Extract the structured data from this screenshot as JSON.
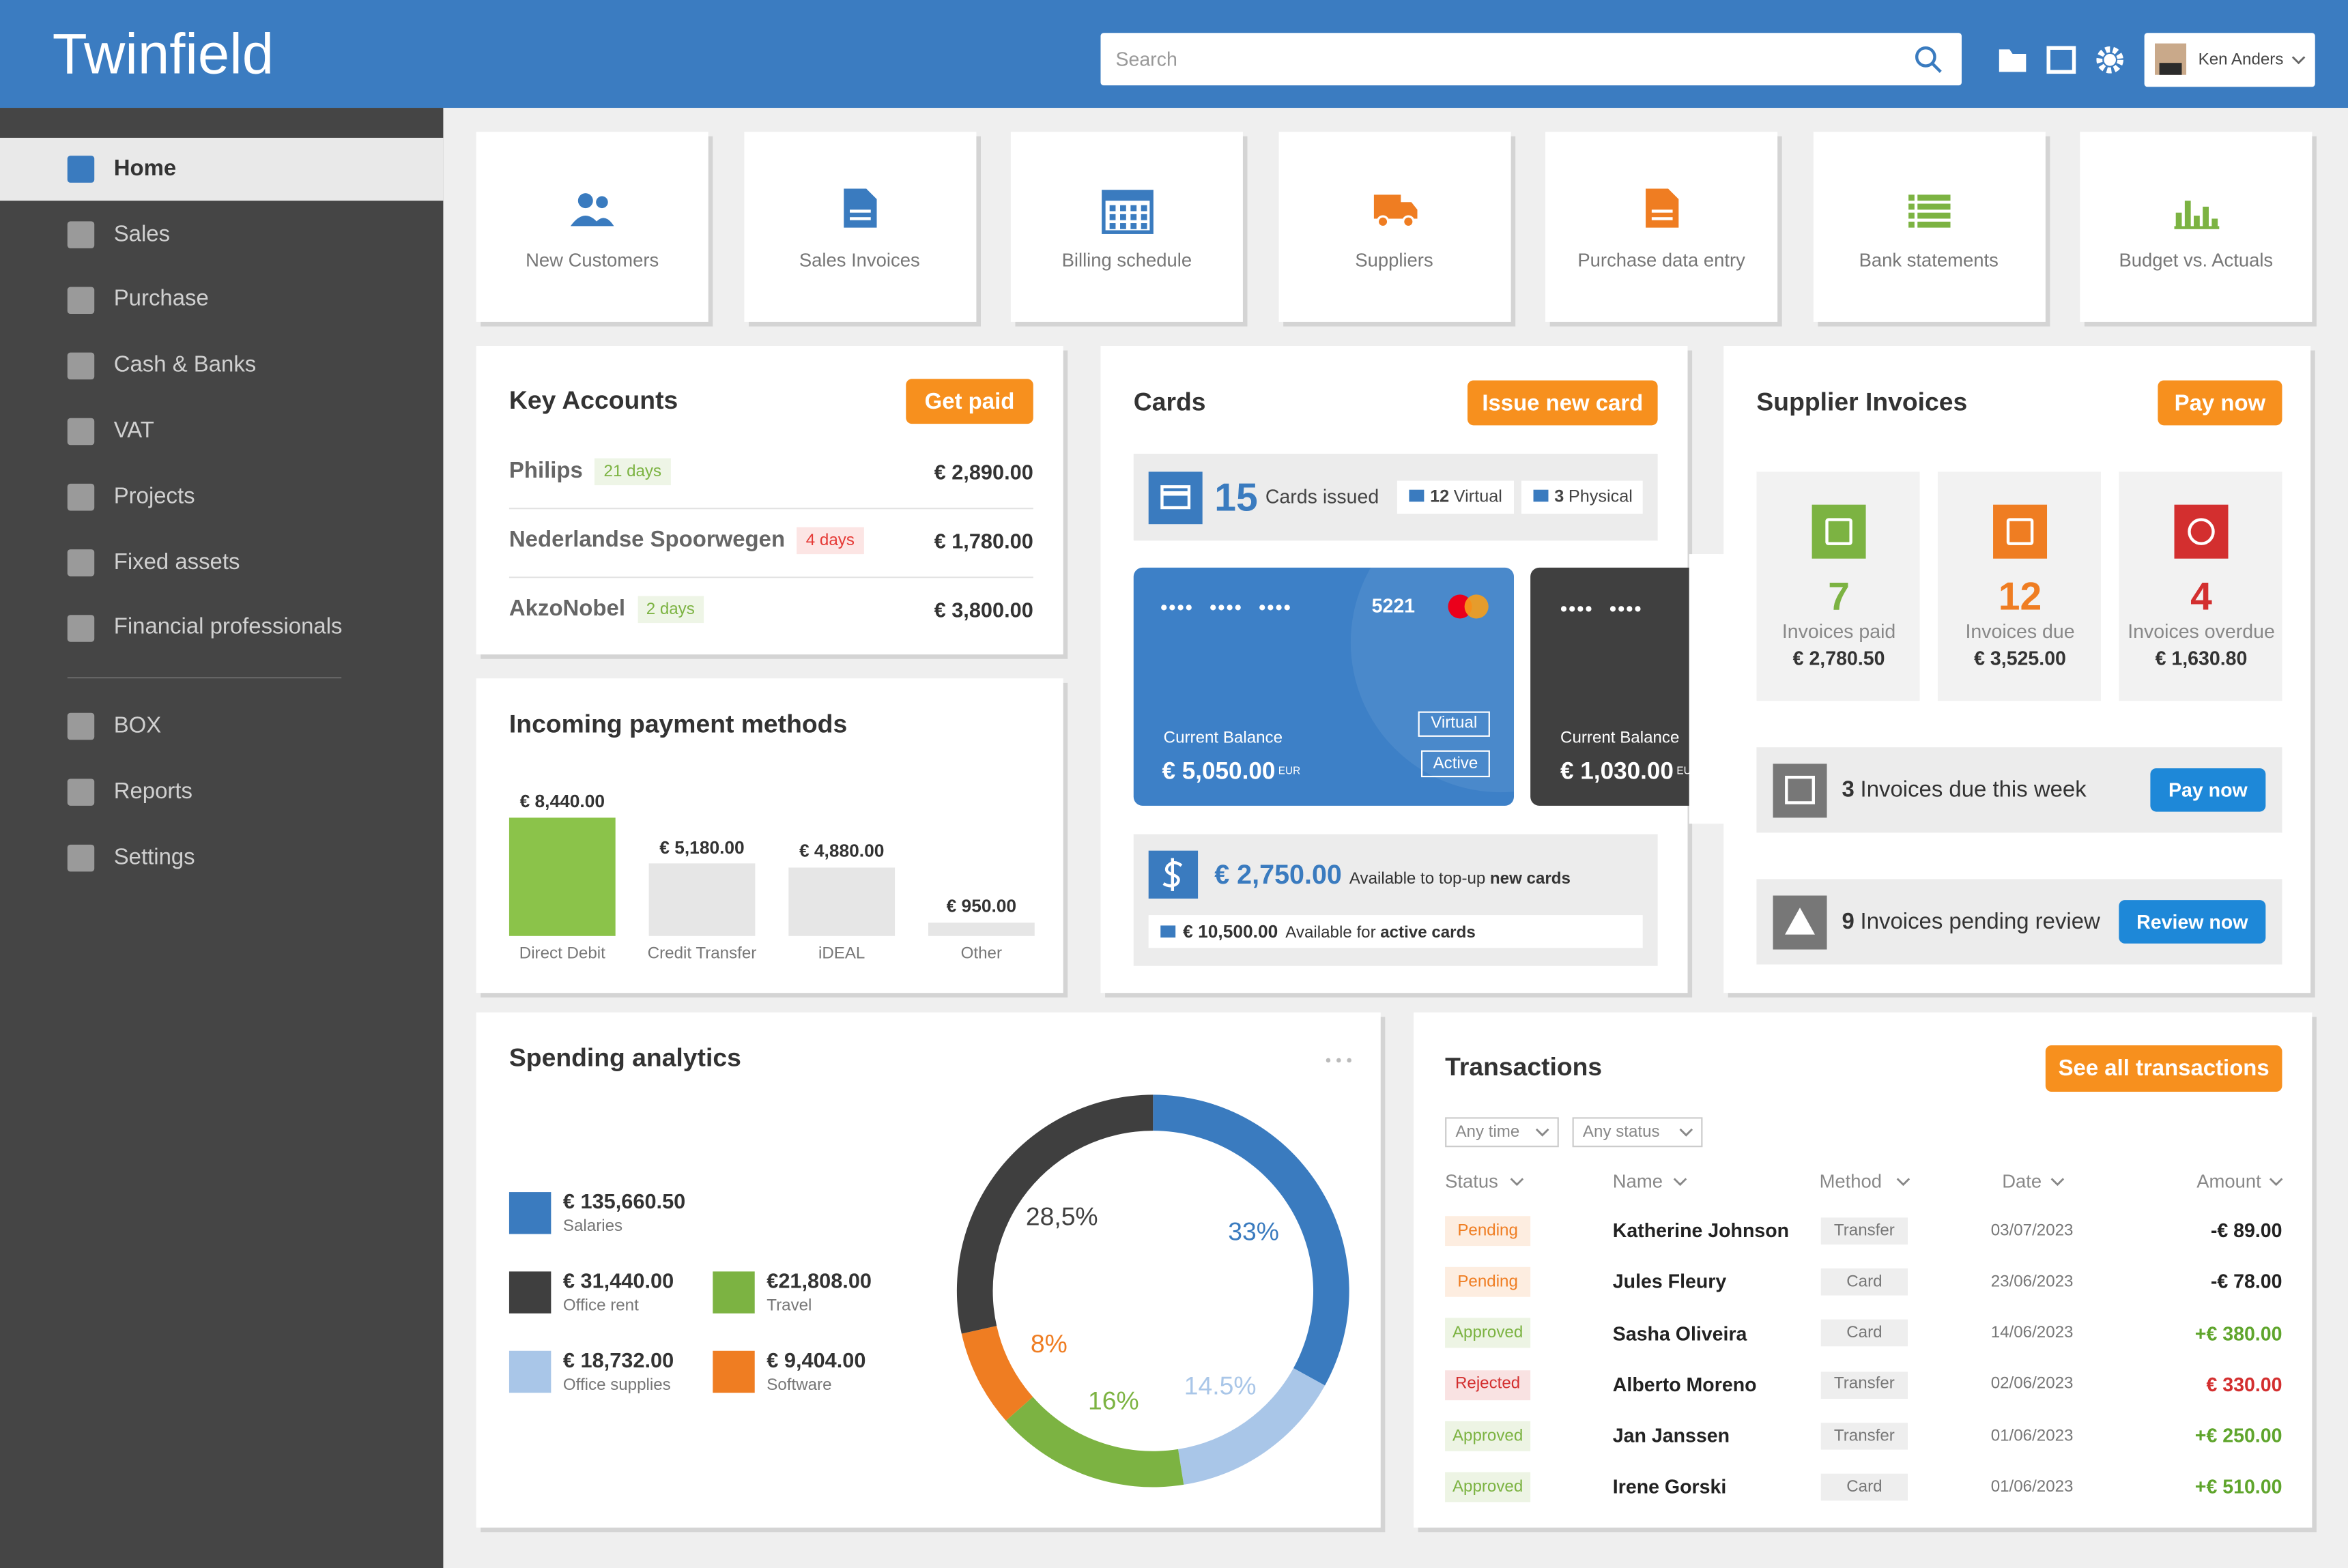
{
  "header": {
    "logo": "Twinfield",
    "search": "Search",
    "user": "Ken Anders"
  },
  "sidebar": {
    "items": [
      "Home",
      "Sales",
      "Purchase",
      "Cash & Banks",
      "VAT",
      "Projects",
      "Fixed assets",
      "Financial professionals"
    ],
    "secondary": [
      "BOX",
      "Reports",
      "Settings"
    ]
  },
  "shortcuts": [
    {
      "label": "New Customers",
      "color": "#3a7bbf"
    },
    {
      "label": "Sales Invoices",
      "color": "#3a7bbf"
    },
    {
      "label": "Billing schedule",
      "color": "#3a7bbf"
    },
    {
      "label": "Suppliers",
      "color": "#ef7d22"
    },
    {
      "label": "Purchase data entry",
      "color": "#ef7d22"
    },
    {
      "label": "Bank statements",
      "color": "#7cb342"
    },
    {
      "label": "Budget vs. Actuals",
      "color": "#7cb342"
    }
  ],
  "key_accounts": {
    "title": "Key Accounts",
    "button": "Get paid",
    "rows": [
      {
        "name": "Philips",
        "badge": "21 days",
        "badge_color": "#7cb342",
        "amount": "€ 2,890.00"
      },
      {
        "name": "Nederlandse Spoorwegen",
        "badge": "4 days",
        "badge_color": "#e53935",
        "amount": "€ 1,780.00"
      },
      {
        "name": "AkzoNobel",
        "badge": "2 days",
        "badge_color": "#7cb342",
        "amount": "€ 3,800.00"
      }
    ]
  },
  "chart_data": [
    {
      "type": "bar",
      "title": "Incoming payment methods",
      "categories": [
        "Direct Debit",
        "Credit Transfer",
        "iDEAL",
        "Other"
      ],
      "values": [
        8440,
        5180,
        4880,
        950
      ],
      "value_labels": [
        "€ 8,440.00",
        "€ 5,180.00",
        "€ 4,880.00",
        "€ 950.00"
      ],
      "colors": [
        "#8bc34a",
        "#e6e6e6",
        "#e6e6e6",
        "#e6e6e6"
      ]
    },
    {
      "type": "pie",
      "title": "Spending analytics",
      "categories": [
        "Salaries",
        "Office supplies",
        "Travel",
        "Software",
        "Office rent"
      ],
      "amounts": [
        "€ 135,660.50",
        "€ 18,732.00",
        "€21,808.00",
        "€ 9,404.00",
        "€ 31,440.00"
      ],
      "values": [
        33,
        14.5,
        16,
        8,
        28.5
      ],
      "value_labels": [
        "33%",
        "14.5%",
        "16%",
        "8%",
        "28,5%"
      ],
      "colors": [
        "#3a7bbf",
        "#a9c6e8",
        "#7cb342",
        "#ef7d22",
        "#3f3f3f"
      ]
    }
  ],
  "cards": {
    "title": "Cards",
    "button": "Issue new card",
    "issued_count": 15,
    "issued_label": "Cards issued",
    "virtual_count": 12,
    "virtual_label": "Virtual",
    "physical_count": 3,
    "physical_label": "Physical",
    "items": [
      {
        "number": "•••• •••• ••••",
        "last4": "5221",
        "balance_label": "Current Balance",
        "balance": "€ 5,050.00",
        "currency": "EUR",
        "type": "Virtual",
        "status": "Active"
      },
      {
        "number": "•••• ••••",
        "balance_label": "Current Balance",
        "balance": "€ 1,030.00",
        "currency": "EUR"
      }
    ],
    "topup": {
      "amount": "€ 2,750.00",
      "text": "Available to top-up",
      "bold": "new cards"
    },
    "active": {
      "amount": "€ 10,500.00",
      "text": "Available for",
      "bold": "active cards"
    }
  },
  "supplier_invoices": {
    "title": "Supplier Invoices",
    "button": "Pay now",
    "stats": [
      {
        "count": 7,
        "label": "Invoices paid",
        "amount": "€ 2,780.50",
        "color": "#7cb342"
      },
      {
        "count": 12,
        "label": "Invoices due",
        "amount": "€ 3,525.00",
        "color": "#ef7d22"
      },
      {
        "count": 4,
        "label": "Invoices overdue",
        "amount": "€ 1,630.80",
        "color": "#d32f2f"
      }
    ],
    "alerts": [
      {
        "count": 3,
        "text": "Invoices due this week",
        "button": "Pay now"
      },
      {
        "count": 9,
        "text": "Invoices pending review",
        "button": "Review now"
      }
    ]
  },
  "transactions": {
    "title": "Transactions",
    "button": "See all transactions",
    "filters": [
      "Any time",
      "Any status"
    ],
    "columns": [
      "Status",
      "Name",
      "Method",
      "Date",
      "Amount"
    ],
    "rows": [
      {
        "status": "Pending",
        "name": "Katherine Johnson",
        "method": "Transfer",
        "date": "03/07/2023",
        "amount": "-€ 89.00",
        "status_color": "#ef7d22",
        "amount_color": "#222222"
      },
      {
        "status": "Pending",
        "name": "Jules Fleury",
        "method": "Card",
        "date": "23/06/2023",
        "amount": "-€ 78.00",
        "status_color": "#ef7d22",
        "amount_color": "#222222"
      },
      {
        "status": "Approved",
        "name": "Sasha Oliveira",
        "method": "Card",
        "date": "14/06/2023",
        "amount": "+€ 380.00",
        "status_color": "#7cb342",
        "amount_color": "#5fa52c"
      },
      {
        "status": "Rejected",
        "name": "Alberto Moreno",
        "method": "Transfer",
        "date": "02/06/2023",
        "amount": "€ 330.00",
        "status_color": "#d32f2f",
        "amount_color": "#d32f2f"
      },
      {
        "status": "Approved",
        "name": "Jan Janssen",
        "method": "Transfer",
        "date": "01/06/2023",
        "amount": "+€ 250.00",
        "status_color": "#7cb342",
        "amount_color": "#5fa52c"
      },
      {
        "status": "Approved",
        "name": "Irene Gorski",
        "method": "Card",
        "date": "01/06/2023",
        "amount": "+€ 510.00",
        "status_color": "#7cb342",
        "amount_color": "#5fa52c"
      }
    ]
  }
}
